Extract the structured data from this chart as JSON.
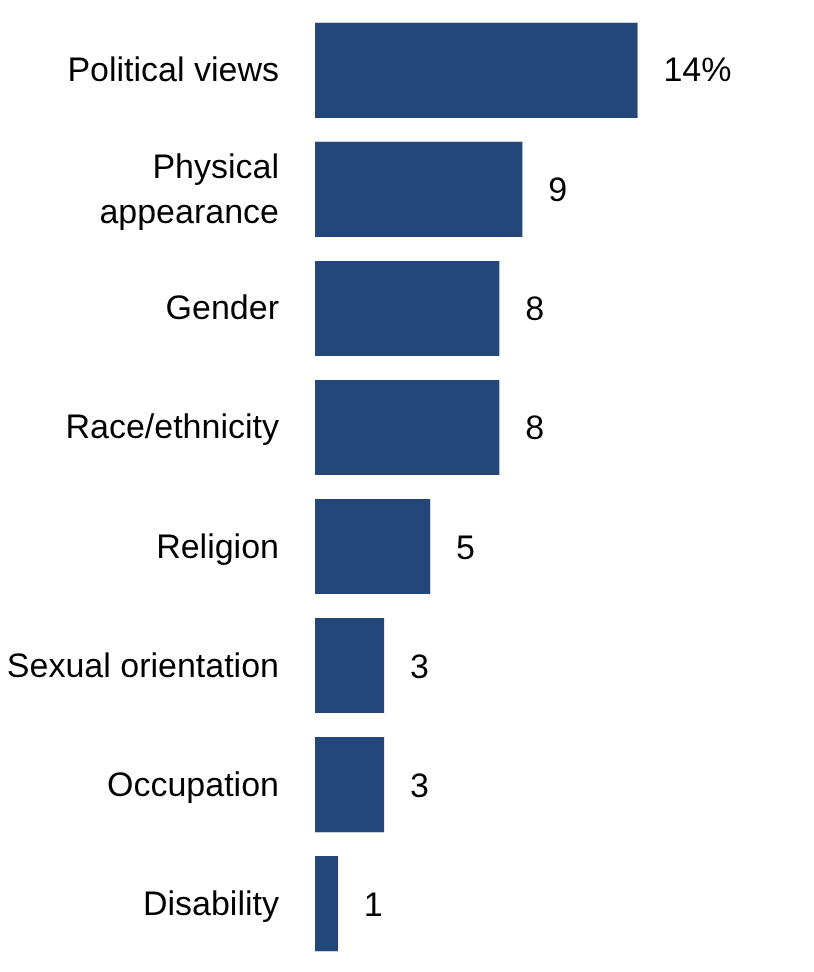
{
  "chart_data": {
    "type": "bar",
    "orientation": "horizontal",
    "categories": [
      "Political views",
      "Physical\nappearance",
      "Gender",
      "Race/ethnicity",
      "Religion",
      "Sexual orientation",
      "Occupation",
      "Disability"
    ],
    "values": [
      14,
      9,
      8,
      8,
      5,
      3,
      3,
      1
    ],
    "value_labels": [
      "14%",
      "9",
      "8",
      "8",
      "5",
      "3",
      "3",
      "1"
    ],
    "color": "#24477a",
    "grid": false
  }
}
